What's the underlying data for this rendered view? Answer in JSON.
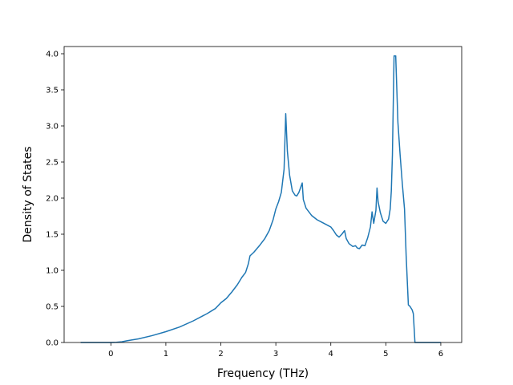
{
  "chart_data": {
    "type": "line",
    "title": "",
    "xlabel": "Frequency (THz)",
    "ylabel": "Density of States",
    "xlim": [
      -0.85,
      6.38
    ],
    "ylim": [
      0.0,
      4.1
    ],
    "grid": false,
    "x_ticks": [
      0,
      1,
      2,
      3,
      4,
      5,
      6
    ],
    "x_tick_labels": [
      "0",
      "1",
      "2",
      "3",
      "4",
      "5",
      "6"
    ],
    "y_ticks": [
      0.0,
      0.5,
      1.0,
      1.5,
      2.0,
      2.5,
      3.0,
      3.5,
      4.0
    ],
    "y_tick_labels": [
      "0.0",
      "0.5",
      "1.0",
      "1.5",
      "2.0",
      "2.5",
      "3.0",
      "3.5",
      "4.0"
    ],
    "line_color": "#1f77b4",
    "series": [
      {
        "points": [
          [
            -0.55,
            0.0
          ],
          [
            0.0,
            0.0
          ],
          [
            0.1,
            0.003
          ],
          [
            0.2,
            0.01
          ],
          [
            0.3,
            0.025
          ],
          [
            0.5,
            0.05
          ],
          [
            0.75,
            0.095
          ],
          [
            1.0,
            0.15
          ],
          [
            1.25,
            0.215
          ],
          [
            1.5,
            0.3
          ],
          [
            1.75,
            0.4
          ],
          [
            1.9,
            0.47
          ],
          [
            2.0,
            0.55
          ],
          [
            2.1,
            0.61
          ],
          [
            2.2,
            0.7
          ],
          [
            2.3,
            0.8
          ],
          [
            2.38,
            0.9
          ],
          [
            2.45,
            0.97
          ],
          [
            2.5,
            1.09
          ],
          [
            2.53,
            1.2
          ],
          [
            2.6,
            1.25
          ],
          [
            2.7,
            1.34
          ],
          [
            2.8,
            1.44
          ],
          [
            2.88,
            1.55
          ],
          [
            2.95,
            1.7
          ],
          [
            3.0,
            1.85
          ],
          [
            3.05,
            1.95
          ],
          [
            3.1,
            2.08
          ],
          [
            3.15,
            2.4
          ],
          [
            3.18,
            3.17
          ],
          [
            3.21,
            2.65
          ],
          [
            3.25,
            2.32
          ],
          [
            3.3,
            2.1
          ],
          [
            3.35,
            2.04
          ],
          [
            3.38,
            2.03
          ],
          [
            3.42,
            2.08
          ],
          [
            3.48,
            2.21
          ],
          [
            3.5,
            1.98
          ],
          [
            3.55,
            1.86
          ],
          [
            3.65,
            1.76
          ],
          [
            3.75,
            1.7
          ],
          [
            3.85,
            1.66
          ],
          [
            3.95,
            1.62
          ],
          [
            4.0,
            1.6
          ],
          [
            4.05,
            1.55
          ],
          [
            4.1,
            1.49
          ],
          [
            4.15,
            1.46
          ],
          [
            4.2,
            1.5
          ],
          [
            4.25,
            1.55
          ],
          [
            4.28,
            1.44
          ],
          [
            4.33,
            1.37
          ],
          [
            4.4,
            1.33
          ],
          [
            4.45,
            1.34
          ],
          [
            4.48,
            1.31
          ],
          [
            4.52,
            1.3
          ],
          [
            4.57,
            1.35
          ],
          [
            4.62,
            1.34
          ],
          [
            4.67,
            1.45
          ],
          [
            4.72,
            1.6
          ],
          [
            4.75,
            1.81
          ],
          [
            4.78,
            1.65
          ],
          [
            4.82,
            1.83
          ],
          [
            4.84,
            2.14
          ],
          [
            4.86,
            1.95
          ],
          [
            4.9,
            1.8
          ],
          [
            4.95,
            1.68
          ],
          [
            5.0,
            1.65
          ],
          [
            5.05,
            1.71
          ],
          [
            5.08,
            1.85
          ],
          [
            5.1,
            2.1
          ],
          [
            5.12,
            2.6
          ],
          [
            5.15,
            3.97
          ],
          [
            5.18,
            3.97
          ],
          [
            5.22,
            3.05
          ],
          [
            5.26,
            2.6
          ],
          [
            5.3,
            2.2
          ],
          [
            5.34,
            1.85
          ],
          [
            5.37,
            1.2
          ],
          [
            5.41,
            0.52
          ],
          [
            5.44,
            0.5
          ],
          [
            5.48,
            0.45
          ],
          [
            5.5,
            0.4
          ],
          [
            5.53,
            0.0
          ],
          [
            6.0,
            0.0
          ]
        ]
      }
    ]
  }
}
